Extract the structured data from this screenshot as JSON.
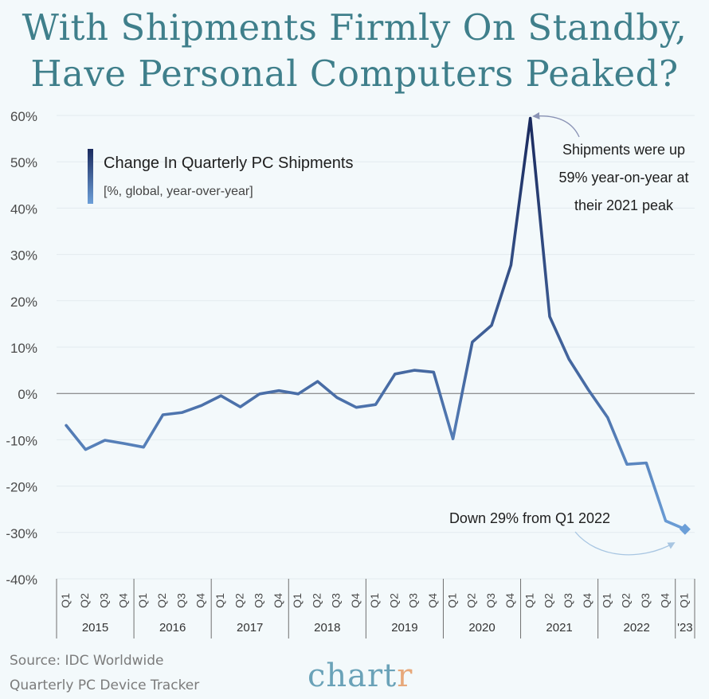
{
  "title": {
    "line1": "With Shipments Firmly On Standby,",
    "line2": "Have Personal Computers Peaked?"
  },
  "legend": {
    "title": "Change In Quarterly PC Shipments",
    "subtitle": "[%, global, year-over-year]"
  },
  "annotations": {
    "peak": [
      "Shipments were up",
      "59% year-on-year at",
      "their 2021 peak"
    ],
    "latest": "Down 29% from Q1 2022"
  },
  "source": {
    "line1": "Source: IDC Worldwide",
    "line2": "Quarterly PC Device Tracker"
  },
  "brand": {
    "main": "chart",
    "accent": "r"
  },
  "colors": {
    "title": "#3f7f8b",
    "line_light": "#6c9fd8",
    "line_mid": "#4a6fa8",
    "line_dark": "#1a2a5e",
    "axis": "#6f6f6f",
    "brand": "#6aa2b8",
    "brand_accent": "#e7a87a"
  },
  "chart_data": {
    "type": "line",
    "y_unit": "%",
    "ylim": [
      -40,
      60
    ],
    "yticks": [
      "60%",
      "50%",
      "40%",
      "30%",
      "20%",
      "10%",
      "0%",
      "-10%",
      "-20%",
      "-30%",
      "-40%"
    ],
    "ytick_values": [
      60,
      50,
      40,
      30,
      20,
      10,
      0,
      -10,
      -20,
      -30,
      -40
    ],
    "grid": true,
    "years": [
      {
        "label": "2015",
        "quarters": [
          "Q1",
          "Q2",
          "Q3",
          "Q4"
        ]
      },
      {
        "label": "2016",
        "quarters": [
          "Q1",
          "Q2",
          "Q3",
          "Q4"
        ]
      },
      {
        "label": "2017",
        "quarters": [
          "Q1",
          "Q2",
          "Q3",
          "Q4"
        ]
      },
      {
        "label": "2018",
        "quarters": [
          "Q1",
          "Q2",
          "Q3",
          "Q4"
        ]
      },
      {
        "label": "2019",
        "quarters": [
          "Q1",
          "Q2",
          "Q3",
          "Q4"
        ]
      },
      {
        "label": "2020",
        "quarters": [
          "Q1",
          "Q2",
          "Q3",
          "Q4"
        ]
      },
      {
        "label": "2021",
        "quarters": [
          "Q1",
          "Q2",
          "Q3",
          "Q4"
        ]
      },
      {
        "label": "2022",
        "quarters": [
          "Q1",
          "Q2",
          "Q3",
          "Q4"
        ]
      },
      {
        "label": "'23",
        "quarters": [
          "Q1"
        ]
      }
    ],
    "values": [
      -6.9,
      -12.1,
      -10.1,
      -10.8,
      -11.6,
      -4.6,
      -4.1,
      -2.6,
      -0.5,
      -2.9,
      -0.1,
      0.6,
      -0.1,
      2.6,
      -0.9,
      -3.0,
      -2.4,
      4.2,
      5.0,
      4.6,
      -9.8,
      11.1,
      14.7,
      27.7,
      59.4,
      16.6,
      7.4,
      0.8,
      -5.2,
      -15.3,
      -15.0,
      -27.5,
      -29.3
    ]
  }
}
